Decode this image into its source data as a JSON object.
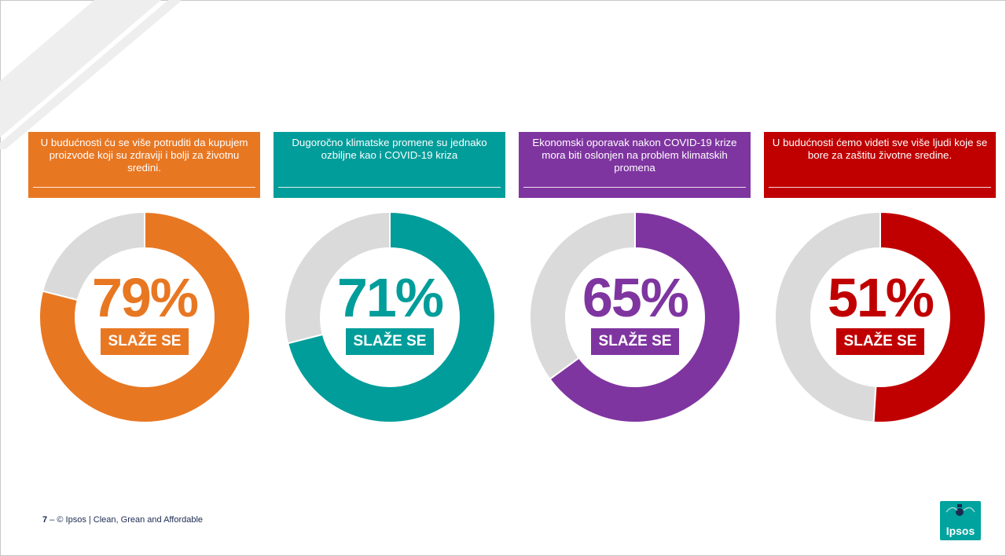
{
  "panels": [
    {
      "statement": "U budućnosti ću se više potruditi da kupujem proizvode koji su zdraviji i bolji za životnu sredini.",
      "value": 79,
      "value_label": "79%",
      "tag": "SLAŽE SE",
      "color": "#e87722",
      "rest_color": "#dadada"
    },
    {
      "statement": "Dugoročno klimatske promene su jednako ozbiljne kao i COVID-19 kriza",
      "value": 71,
      "value_label": "71%",
      "tag": "SLAŽE SE",
      "color": "#009d9a",
      "rest_color": "#dadada"
    },
    {
      "statement": "Ekonomski oporavak nakon COVID-19 krize mora biti oslonjen na problem klimatskih promena",
      "value": 65,
      "value_label": "65%",
      "tag": "SLAŽE SE",
      "color": "#7f35a0",
      "rest_color": "#dadada"
    },
    {
      "statement": "U budućnosti ćemo videti sve više ljudi koje se bore za zaštitu životne sredine.",
      "value": 51,
      "value_label": "51%",
      "tag": "SLAŽE SE",
      "color": "#c00000",
      "rest_color": "#dadada"
    }
  ],
  "chart_data": [
    {
      "type": "pie",
      "title": "U budućnosti ću se više potruditi da kupujem proizvode koji su zdraviji i bolji za životnu sredini.",
      "categories": [
        "SLAŽE SE",
        ""
      ],
      "values": [
        79,
        21
      ]
    },
    {
      "type": "pie",
      "title": "Dugoročno klimatske promene su jednako ozbiljne kao i COVID-19 kriza",
      "categories": [
        "SLAŽE SE",
        ""
      ],
      "values": [
        71,
        29
      ]
    },
    {
      "type": "pie",
      "title": "Ekonomski oporavak nakon COVID-19 krize mora biti oslonjen na problem klimatskih promena",
      "categories": [
        "SLAŽE SE",
        ""
      ],
      "values": [
        65,
        35
      ]
    },
    {
      "type": "pie",
      "title": "U budućnosti ćemo videti sve više ljudi koje se bore za zaštitu životne sredine.",
      "categories": [
        "SLAŽE SE",
        ""
      ],
      "values": [
        51,
        49
      ]
    }
  ],
  "footer": {
    "page_number": "7",
    "separator": "–",
    "text": "© Ipsos | Clean, Grean and Affordable"
  },
  "logo": {
    "text": "Ipsos",
    "color": "#00a39e"
  }
}
